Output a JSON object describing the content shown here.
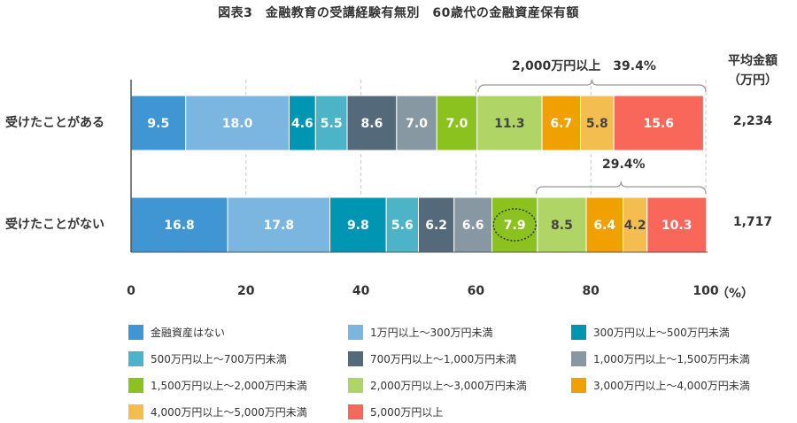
{
  "chart_data": {
    "type": "bar",
    "orientation": "horizontal",
    "stacked": true,
    "title": "図表3　金融教育の受講経験有無別　60歳代の金融資産保有額",
    "categories": [
      "受けたことがある",
      "受けたことがない"
    ],
    "xlim": [
      0,
      100
    ],
    "x_ticks": [
      "0",
      "20",
      "40",
      "60",
      "80",
      "100"
    ],
    "x_unit": "（%）",
    "grid": "vertical dashed",
    "legend_placement": "bottom",
    "series": [
      {
        "name": "金融資産はない",
        "color": "#3f96d2",
        "values": [
          9.5,
          16.8
        ],
        "label_color": "#ffffff"
      },
      {
        "name": "1万円以上～300万円未満",
        "color": "#7ab6e0",
        "values": [
          18.0,
          17.8
        ],
        "label_color": "#ffffff"
      },
      {
        "name": "300万円以上～500万円未満",
        "color": "#0095b3",
        "values": [
          4.6,
          9.8
        ],
        "label_color": "#ffffff"
      },
      {
        "name": "500万円以上～700万円未満",
        "color": "#4db4c8",
        "values": [
          5.5,
          5.6
        ],
        "label_color": "#ffffff"
      },
      {
        "name": "700万円以上～1,000万円未満",
        "color": "#546a7b",
        "values": [
          8.6,
          6.2
        ],
        "label_color": "#ffffff"
      },
      {
        "name": "1,000万円以上～1,500万円未満",
        "color": "#8898a3",
        "values": [
          7.0,
          6.6
        ],
        "label_color": "#ffffff"
      },
      {
        "name": "1,500万円以上～2,000万円未満",
        "color": "#8cc21f",
        "values": [
          7.0,
          7.9
        ],
        "label_color": "#ffffff"
      },
      {
        "name": "2,000万円以上～3,000万円未満",
        "color": "#b0d566",
        "values": [
          11.3,
          8.5
        ],
        "label_color": "#444444"
      },
      {
        "name": "3,000万円以上～4,000万円未満",
        "color": "#f0a000",
        "values": [
          6.7,
          6.4
        ],
        "label_color": "#ffffff"
      },
      {
        "name": "4,000万円以上～5,000万円未満",
        "color": "#f4bd50",
        "values": [
          5.8,
          4.2
        ],
        "label_color": "#444444"
      },
      {
        "name": "5,000万円以上",
        "color": "#f9675a",
        "values": [
          15.6,
          10.3
        ],
        "label_color": "#ffffff"
      }
    ],
    "annotations": {
      "row1_brace": {
        "label": "2,000万円以上　39.4%",
        "from": 60.4,
        "to": 100
      },
      "row2_brace": {
        "label": "29.4%",
        "from": 70.5,
        "to": 100
      },
      "highlight": {
        "row": 1,
        "series": 6,
        "style": "dotted circle"
      }
    },
    "average": {
      "header": "平均金額",
      "unit": "（万円）",
      "values": [
        "2,234",
        "1,717"
      ]
    }
  }
}
